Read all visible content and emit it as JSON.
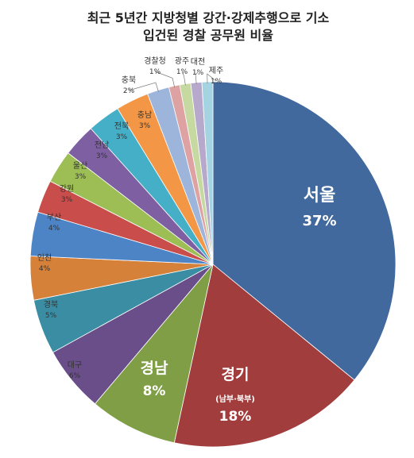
{
  "chart_data": {
    "type": "pie",
    "title_lines": [
      "최근 5년간 지방청별 강간·강제추행으로 기소",
      "입건된 경찰 공무원 비율"
    ],
    "slices": [
      {
        "label": "서울",
        "note": "",
        "value": 37,
        "pct_label": "37%",
        "color": "#41699E",
        "inside": true
      },
      {
        "label": "경기",
        "note": "(남부·북부)",
        "value": 18,
        "pct_label": "18%",
        "color": "#A23D3D",
        "inside": true
      },
      {
        "label": "경남",
        "note": "",
        "value": 8,
        "pct_label": "8%",
        "color": "#7F9E45",
        "inside": true
      },
      {
        "label": "대구",
        "note": "",
        "value": 6,
        "pct_label": "6%",
        "color": "#694E8A",
        "inside": false
      },
      {
        "label": "경북",
        "note": "",
        "value": 5,
        "pct_label": "5%",
        "color": "#3A8DA3",
        "inside": false
      },
      {
        "label": "인천",
        "note": "",
        "value": 4,
        "pct_label": "4%",
        "color": "#D5813A",
        "inside": false
      },
      {
        "label": "부산",
        "note": "",
        "value": 4,
        "pct_label": "4%",
        "color": "#4C84C6",
        "inside": false
      },
      {
        "label": "강원",
        "note": "",
        "value": 3,
        "pct_label": "3%",
        "color": "#C84D4B",
        "inside": false
      },
      {
        "label": "울산",
        "note": "",
        "value": 3,
        "pct_label": "3%",
        "color": "#9CBE55",
        "inside": false
      },
      {
        "label": "전남",
        "note": "",
        "value": 3,
        "pct_label": "3%",
        "color": "#7E60A2",
        "inside": false
      },
      {
        "label": "전북",
        "note": "",
        "value": 3,
        "pct_label": "3%",
        "color": "#45AFC7",
        "inside": false
      },
      {
        "label": "충남",
        "note": "",
        "value": 3,
        "pct_label": "3%",
        "color": "#F39646",
        "inside": false
      },
      {
        "label": "충북",
        "note": "",
        "value": 2,
        "pct_label": "2%",
        "color": "#9DB4DB",
        "inside": false
      },
      {
        "label": "경찰청",
        "note": "",
        "value": 1,
        "pct_label": "1%",
        "color": "#DDA2A1",
        "inside": false
      },
      {
        "label": "광주",
        "note": "",
        "value": 1,
        "pct_label": "1%",
        "color": "#C6D9A1",
        "inside": false
      },
      {
        "label": "대전",
        "note": "",
        "value": 1,
        "pct_label": "1%",
        "color": "#B6A9CC",
        "inside": false
      },
      {
        "label": "제주",
        "note": "",
        "value": 1,
        "pct_label": "1%",
        "color": "#A4D3E1",
        "inside": false
      }
    ],
    "start": "12 o'clock",
    "direction": "clockwise",
    "legend": "none"
  }
}
